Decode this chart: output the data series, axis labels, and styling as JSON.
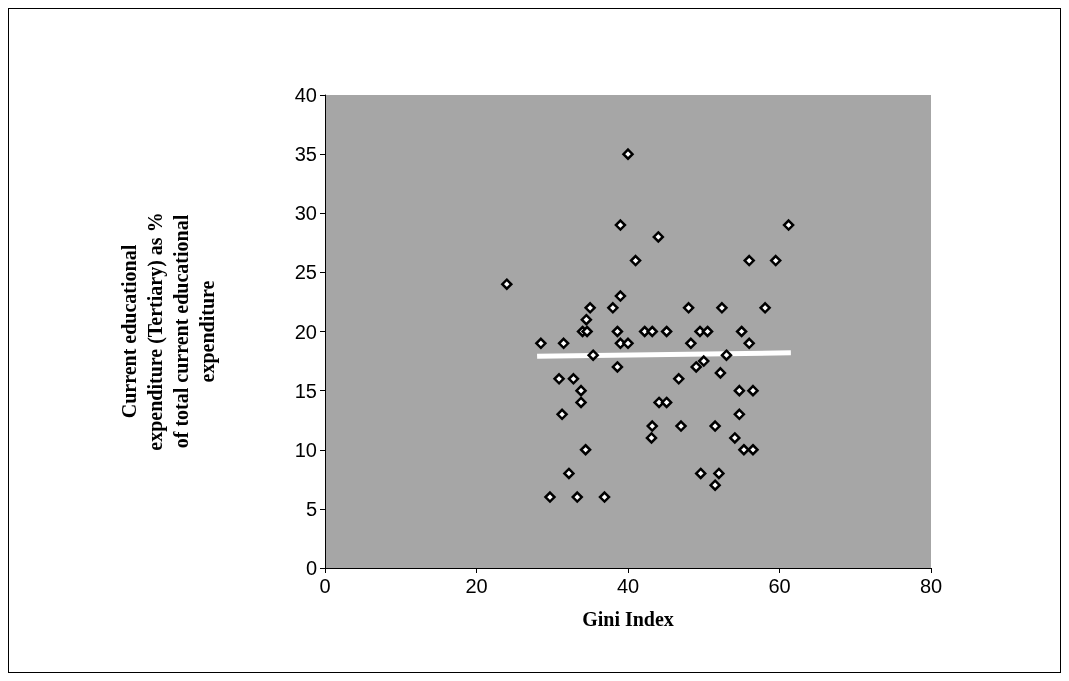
{
  "chart_data": {
    "type": "scatter",
    "xlabel": "Gini Index",
    "ylabel": "Current educational\nexpenditure (Tertiary) as %\nof total current educational\nexpenditure",
    "xlim": [
      0,
      80
    ],
    "ylim": [
      0,
      40
    ],
    "xticks": [
      0,
      20,
      40,
      60,
      80
    ],
    "yticks": [
      0,
      5,
      10,
      15,
      20,
      25,
      30,
      35,
      40
    ],
    "grid": false,
    "marker": "diamond",
    "series": [
      {
        "color": "#000000",
        "x": [
          40,
          39,
          44,
          41,
          24,
          39,
          38,
          35,
          48,
          34.5,
          34,
          34.6,
          38.6,
          42.2,
          43.2,
          45.1,
          49.5,
          50.5,
          28.5,
          31.5,
          39,
          40,
          48.3,
          35.4,
          38.6,
          49,
          30.9,
          32.8,
          46.7,
          33.8,
          33.8,
          44.1,
          45.1,
          31.3,
          43.2,
          47,
          43.1,
          34.4,
          32.2,
          49.6,
          29.7,
          33.3,
          36.9,
          61.2,
          56,
          59.5,
          52.4,
          58.1,
          55,
          56,
          52.2,
          54.7,
          56.5,
          54.7,
          51.5,
          54.1,
          55.3,
          56.5,
          52,
          51.5,
          50,
          53
        ],
        "values": [
          35,
          29,
          28,
          26,
          24,
          23,
          22,
          22,
          22,
          21,
          20,
          20,
          20,
          20,
          20,
          20,
          20,
          20,
          19,
          19,
          19,
          19,
          19,
          18,
          17,
          17,
          16,
          16,
          16,
          15,
          14,
          14,
          14,
          13,
          12,
          12,
          11,
          10,
          8,
          8,
          6,
          6,
          6,
          29,
          26,
          26,
          22,
          22,
          20,
          19,
          16.5,
          15,
          15,
          13,
          12,
          11,
          10,
          10,
          8,
          7,
          17.5,
          18
        ]
      },
      {
        "type": "line",
        "marker": "none",
        "color": "#ffffff",
        "x": [
          28,
          61.5
        ],
        "values": [
          17.9,
          18.2
        ]
      }
    ]
  }
}
